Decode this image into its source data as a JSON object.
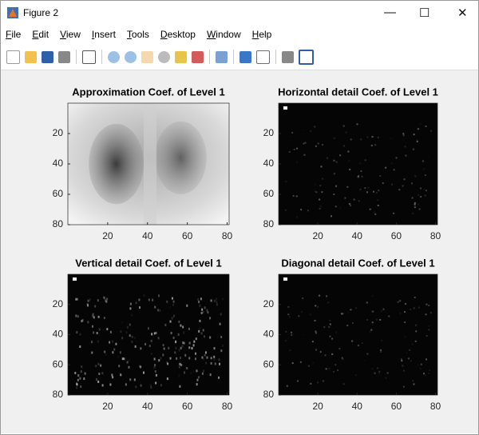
{
  "window": {
    "title": "Figure 2",
    "menu": [
      "File",
      "Edit",
      "View",
      "Insert",
      "Tools",
      "Desktop",
      "Window",
      "Help"
    ]
  },
  "chart_data": [
    {
      "type": "image",
      "title": "Approximation Coef. of Level 1",
      "xlim": [
        0,
        81
      ],
      "ylim": [
        0,
        80
      ],
      "xticks": [
        20,
        40,
        60,
        80
      ],
      "yticks": [
        20,
        40,
        60,
        80
      ],
      "yreverse": true
    },
    {
      "type": "image",
      "title": "Horizontal detail Coef. of Level 1",
      "xlim": [
        0,
        81
      ],
      "ylim": [
        0,
        80
      ],
      "xticks": [
        20,
        40,
        60,
        80
      ],
      "yticks": [
        20,
        40,
        60,
        80
      ],
      "yreverse": true
    },
    {
      "type": "image",
      "title": "Vertical detail Coef. of Level 1",
      "xlim": [
        0,
        81
      ],
      "ylim": [
        0,
        80
      ],
      "xticks": [
        20,
        40,
        60,
        80
      ],
      "yticks": [
        20,
        40,
        60,
        80
      ],
      "yreverse": true
    },
    {
      "type": "image",
      "title": "Diagonal detail Coef. of Level 1",
      "xlim": [
        0,
        81
      ],
      "ylim": [
        0,
        80
      ],
      "xticks": [
        20,
        40,
        60,
        80
      ],
      "yticks": [
        20,
        40,
        60,
        80
      ],
      "yreverse": true
    }
  ]
}
